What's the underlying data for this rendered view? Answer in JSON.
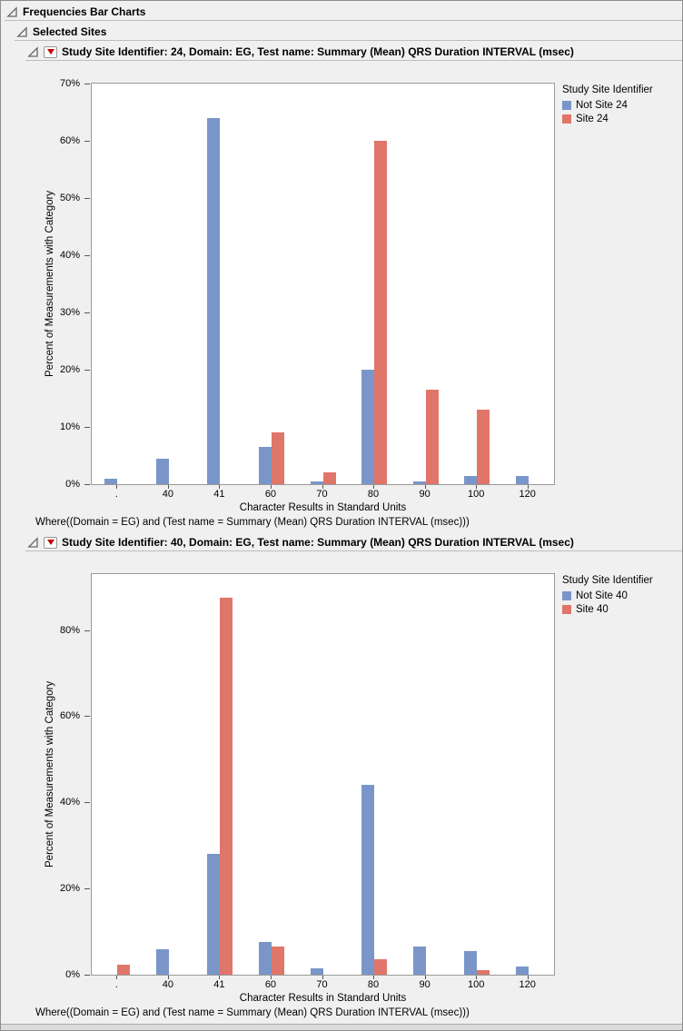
{
  "page": {
    "title": "Frequencies Bar Charts",
    "subtitle": "Selected Sites"
  },
  "colors": {
    "bar_blue": "#7A96C9",
    "bar_red": "#E0756A",
    "background": "#F0F0F0"
  },
  "icons": {
    "disclosure": "open-disclosure-triangle",
    "menu": "red-triangle-menu"
  },
  "sections": [
    {
      "title": "Study Site Identifier: 24, Domain: EG, Test name: Summary (Mean) QRS Duration INTERVAL (msec)",
      "where": "Where((Domain = EG) and (Test name = Summary (Mean) QRS Duration INTERVAL (msec)))"
    },
    {
      "title": "Study Site Identifier: 40, Domain: EG, Test name: Summary (Mean) QRS Duration INTERVAL (msec)",
      "where": "Where((Domain = EG) and (Test name = Summary (Mean) QRS Duration INTERVAL (msec)))"
    }
  ],
  "chart_data": [
    {
      "type": "bar",
      "title": "Study Site Identifier: 24, Domain: EG, Test name: Summary (Mean) QRS Duration INTERVAL (msec)",
      "categories": [
        ".",
        "40",
        "41",
        "60",
        "70",
        "80",
        "90",
        "100",
        "120"
      ],
      "series": [
        {
          "name": "Not Site 24",
          "color": "#7A96C9",
          "values": [
            1,
            4.5,
            64,
            6.5,
            0.5,
            20,
            0.5,
            1.5,
            1.5
          ]
        },
        {
          "name": "Site 24",
          "color": "#E0756A",
          "values": [
            0,
            0,
            0,
            9,
            2,
            60,
            16.5,
            13,
            0
          ]
        }
      ],
      "xlabel": "Character Results in Standard Units",
      "ylabel": "Percent of Measurements with Category",
      "ylim": [
        0,
        70
      ],
      "y_ticks": [
        0,
        10,
        20,
        30,
        40,
        50,
        60,
        70
      ],
      "y_tick_suffix": "%",
      "legend_title": "Study Site Identifier",
      "legend_position": "right",
      "grid": false
    },
    {
      "type": "bar",
      "title": "Study Site Identifier: 40, Domain: EG, Test name: Summary (Mean) QRS Duration INTERVAL (msec)",
      "categories": [
        ".",
        "40",
        "41",
        "60",
        "70",
        "80",
        "90",
        "100",
        "120"
      ],
      "series": [
        {
          "name": "Not Site 40",
          "color": "#7A96C9",
          "values": [
            0,
            6,
            28,
            7.5,
            1.5,
            44,
            6.5,
            5.5,
            2
          ]
        },
        {
          "name": "Site 40",
          "color": "#E0756A",
          "values": [
            2.3,
            0,
            87.5,
            6.5,
            0,
            3.5,
            0,
            1,
            0
          ]
        }
      ],
      "xlabel": "Character Results in Standard Units",
      "ylabel": "Percent of Measurements with Category",
      "ylim": [
        0,
        93
      ],
      "y_ticks": [
        0,
        20,
        40,
        60,
        80
      ],
      "y_tick_suffix": "%",
      "legend_title": "Study Site Identifier",
      "legend_position": "right",
      "grid": false
    }
  ]
}
